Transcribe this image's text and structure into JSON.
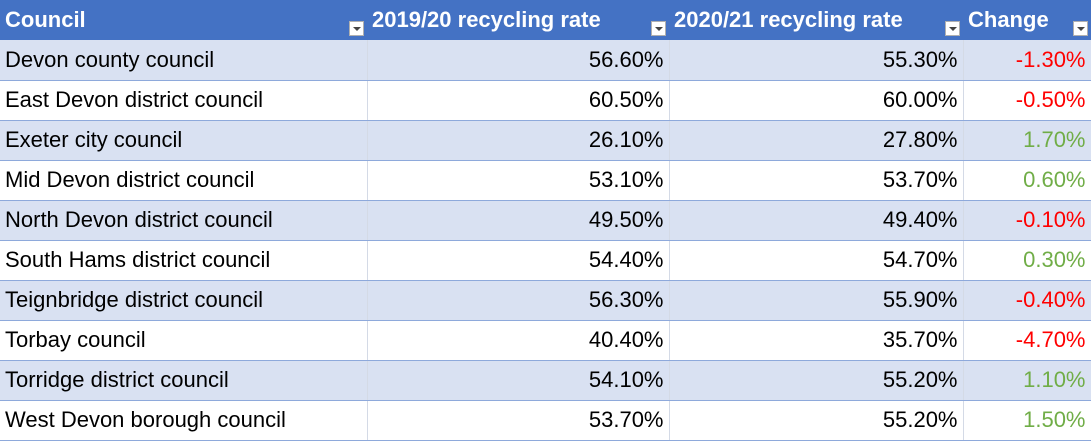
{
  "table": {
    "header": [
      "Council",
      "2019/20 recycling rate",
      "2020/21 recycling rate",
      "Change"
    ],
    "rows": [
      [
        "Devon county council",
        "56.60%",
        "55.30%",
        "-1.30%"
      ],
      [
        "East Devon district council",
        "60.50%",
        "60.00%",
        "-0.50%"
      ],
      [
        "Exeter city council",
        "26.10%",
        "27.80%",
        "1.70%"
      ],
      [
        "Mid Devon district council",
        "53.10%",
        "53.70%",
        "0.60%"
      ],
      [
        "North Devon district council",
        "49.50%",
        "49.40%",
        "-0.10%"
      ],
      [
        "South Hams district council",
        "54.40%",
        "54.70%",
        "0.30%"
      ],
      [
        "Teignbridge district council",
        "56.30%",
        "55.90%",
        "-0.40%"
      ],
      [
        "Torbay council",
        "40.40%",
        "35.70%",
        "-4.70%"
      ],
      [
        "Torridge district council",
        "54.10%",
        "55.20%",
        "1.10%"
      ],
      [
        "West Devon borough council",
        "53.70%",
        "55.20%",
        "1.50%"
      ]
    ]
  }
}
